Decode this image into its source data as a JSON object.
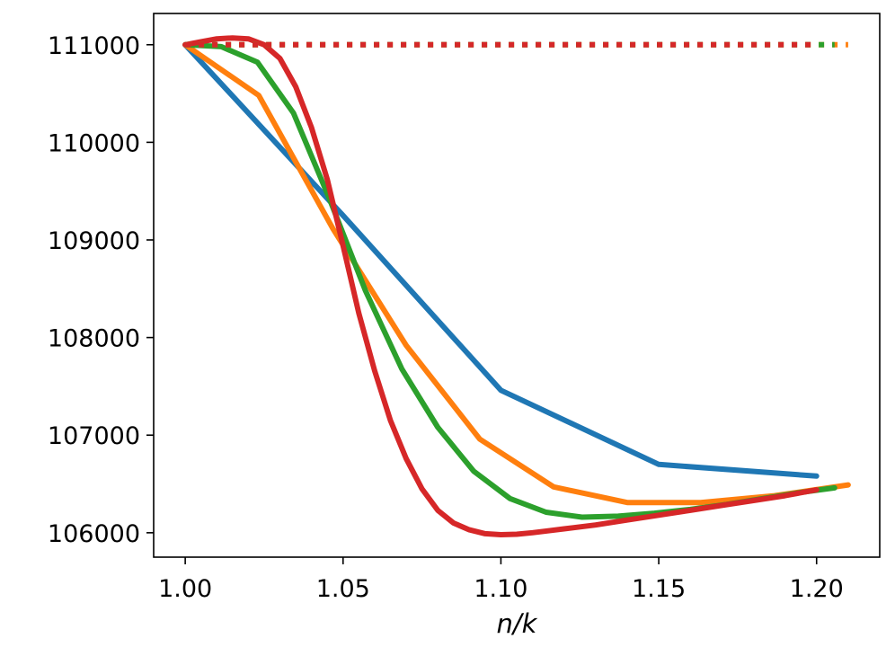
{
  "chart_data": {
    "type": "line",
    "xlabel": "n/k",
    "ylabel": "",
    "title": "",
    "xlim": [
      0.99,
      1.22
    ],
    "ylim": [
      105750,
      111320
    ],
    "xticks": [
      1.0,
      1.05,
      1.1,
      1.15,
      1.2
    ],
    "xtick_labels": [
      "1.00",
      "1.05",
      "1.10",
      "1.15",
      "1.20"
    ],
    "yticks": [
      106000,
      107000,
      108000,
      109000,
      110000,
      111000
    ],
    "ytick_labels": [
      "106000",
      "107000",
      "108000",
      "109000",
      "110000",
      "111000"
    ],
    "grid": false,
    "legend": "none",
    "series": [
      {
        "color": "#1f77b4",
        "style": "solid",
        "x": [
          1.0,
          1.05,
          1.1,
          1.15,
          1.2
        ],
        "y": [
          111000,
          109250,
          107460,
          106700,
          106580
        ]
      },
      {
        "color": "#ff7f0e",
        "style": "solid",
        "x": [
          1.0,
          1.0233,
          1.0467,
          1.07,
          1.0933,
          1.1167,
          1.14,
          1.1633,
          1.1867,
          1.21
        ],
        "y": [
          111000,
          110480,
          109120,
          107920,
          106960,
          106470,
          106310,
          106310,
          106380,
          106490
        ]
      },
      {
        "color": "#2ca02c",
        "style": "solid",
        "x": [
          1.0,
          1.0114,
          1.0229,
          1.0343,
          1.0457,
          1.0571,
          1.0686,
          1.08,
          1.0914,
          1.1029,
          1.1143,
          1.1257,
          1.1371,
          1.1486,
          1.16,
          1.1714,
          1.1829,
          1.1943,
          1.2057
        ],
        "y": [
          111000,
          110980,
          110820,
          110300,
          109420,
          108480,
          107680,
          107080,
          106630,
          106350,
          106210,
          106160,
          106170,
          106200,
          106240,
          106290,
          106350,
          106410,
          106460
        ]
      },
      {
        "color": "#d62728",
        "style": "solid",
        "x": [
          1.0,
          1.005,
          1.01,
          1.015,
          1.02,
          1.025,
          1.03,
          1.035,
          1.04,
          1.045,
          1.05,
          1.055,
          1.06,
          1.065,
          1.07,
          1.075,
          1.08,
          1.085,
          1.09,
          1.095,
          1.1,
          1.105,
          1.11,
          1.115,
          1.12,
          1.13,
          1.14,
          1.15,
          1.16,
          1.17,
          1.18,
          1.19,
          1.2
        ],
        "y": [
          111000,
          111030,
          111060,
          111070,
          111060,
          111000,
          110860,
          110570,
          110150,
          109620,
          108940,
          108250,
          107660,
          107150,
          106760,
          106450,
          106230,
          106100,
          106030,
          105990,
          105980,
          105985,
          106000,
          106020,
          106040,
          106080,
          106130,
          106180,
          106230,
          106280,
          106330,
          106380,
          106440
        ]
      },
      {
        "color": "#ff7f0e",
        "style": "dotted",
        "x": [
          1.0,
          1.21
        ],
        "y": [
          111000,
          111000
        ]
      },
      {
        "color": "#2ca02c",
        "style": "dotted",
        "x": [
          1.0,
          1.2057
        ],
        "y": [
          111000,
          111000
        ]
      },
      {
        "color": "#d62728",
        "style": "dotted",
        "x": [
          1.0,
          1.2
        ],
        "y": [
          111000,
          111000
        ]
      }
    ]
  }
}
